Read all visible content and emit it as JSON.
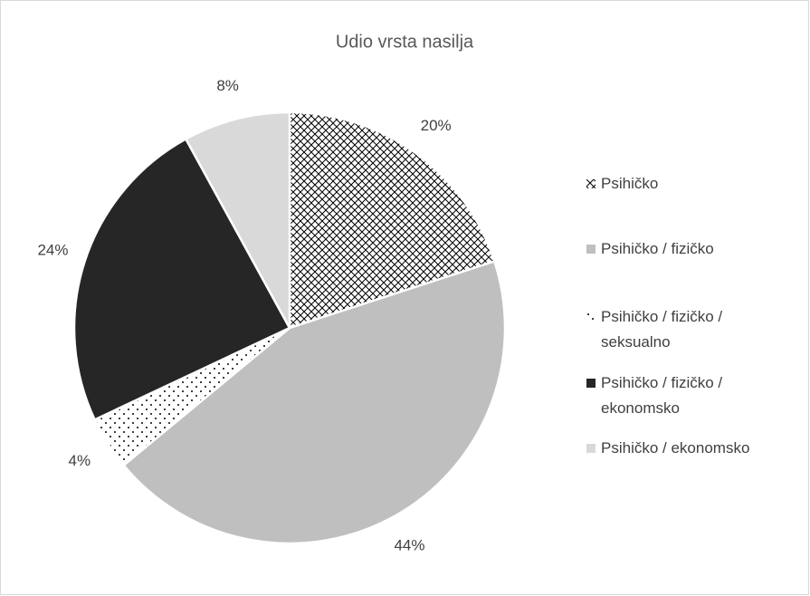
{
  "chart_data": {
    "type": "pie",
    "title": "Udio vrsta nasilja",
    "categories": [
      "Psihičko",
      "Psihičko / fizičko",
      "Psihičko / fizičko / seksualno",
      "Psihičko / fizičko / ekonomsko",
      "Psihičko / ekonomsko"
    ],
    "values": [
      20,
      44,
      4,
      24,
      8
    ],
    "value_labels": [
      "20%",
      "44%",
      "4%",
      "24%",
      "8%"
    ],
    "colors": [
      "#000000",
      "#bfbfbf",
      "#000000",
      "#262626",
      "#d9d9d9"
    ],
    "patterns": [
      "crosshatch",
      "solid",
      "dots",
      "solid",
      "solid"
    ],
    "legend": "right"
  }
}
